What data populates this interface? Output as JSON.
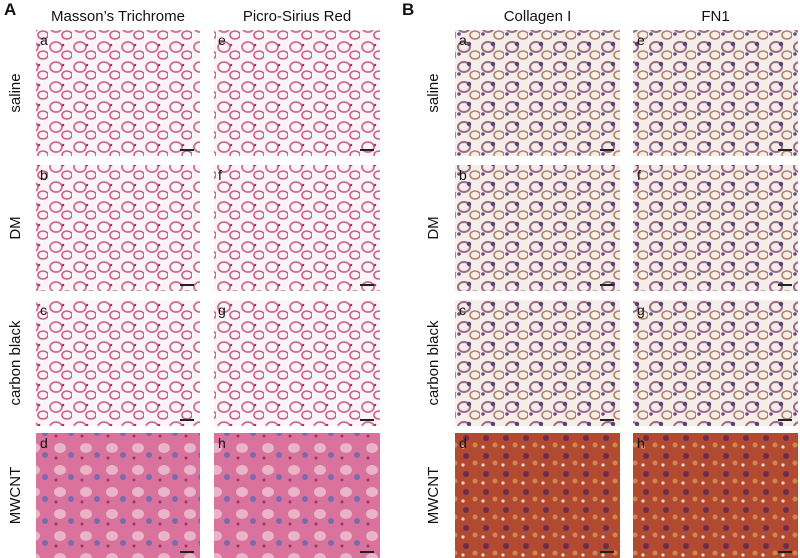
{
  "panels": [
    {
      "label": "A",
      "columns": [
        "Masson’s Trichrome",
        "Picro-Sirius Red"
      ],
      "rows": [
        "saline",
        "DM",
        "carbon black",
        "MWCNT"
      ],
      "tile_letters": [
        [
          "a",
          "e"
        ],
        [
          "b",
          "f"
        ],
        [
          "c",
          "g"
        ],
        [
          "d",
          "h"
        ]
      ]
    },
    {
      "label": "B",
      "columns": [
        "Collagen I",
        "FN1"
      ],
      "rows": [
        "saline",
        "DM",
        "carbon black",
        "MWCNT"
      ],
      "tile_letters": [
        [
          "a",
          "e"
        ],
        [
          "b",
          "f"
        ],
        [
          "c",
          "g"
        ],
        [
          "d",
          "h"
        ]
      ]
    }
  ]
}
